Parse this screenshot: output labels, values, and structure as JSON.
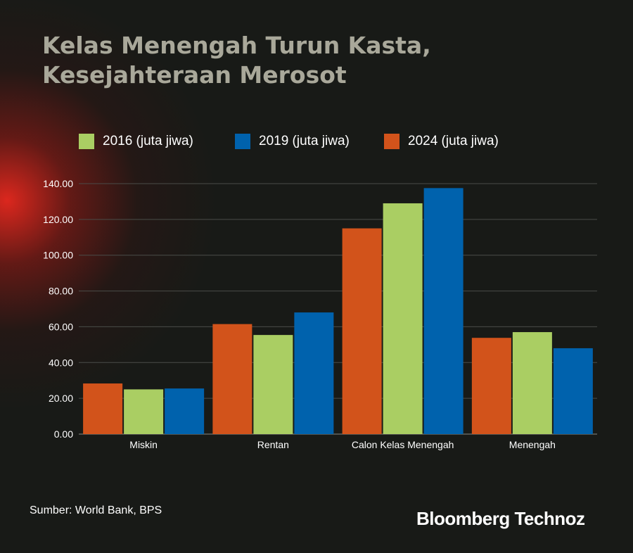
{
  "title": {
    "line1": "Kelas Menengah Turun Kasta,",
    "line2": "Kesejahteraan Merosot"
  },
  "chart_data": {
    "type": "bar",
    "categories": [
      "Miskin",
      "Rentan",
      "Calon Kelas Menengah",
      "Menengah"
    ],
    "series": [
      {
        "name": "2024 (juta jiwa)",
        "color": "#d2531b",
        "values": [
          28.3,
          61.5,
          115.0,
          53.8
        ]
      },
      {
        "name": "2016 (juta jiwa)",
        "color": "#aace63",
        "values": [
          25.0,
          55.4,
          129.0,
          57.0
        ]
      },
      {
        "name": "2019 (juta jiwa)",
        "color": "#0062ad",
        "values": [
          25.5,
          68.0,
          137.5,
          48.0
        ]
      }
    ],
    "legend_order": [
      1,
      2,
      0
    ],
    "y_ticks": [
      "0.00",
      "20.00",
      "40.00",
      "60.00",
      "80.00",
      "100.00",
      "120.00",
      "140.00"
    ],
    "ylim": [
      0,
      140
    ],
    "grid": true,
    "legend_position": "top"
  },
  "source": "Sumber:  World Bank, BPS",
  "logo": "Bloomberg Technoz"
}
